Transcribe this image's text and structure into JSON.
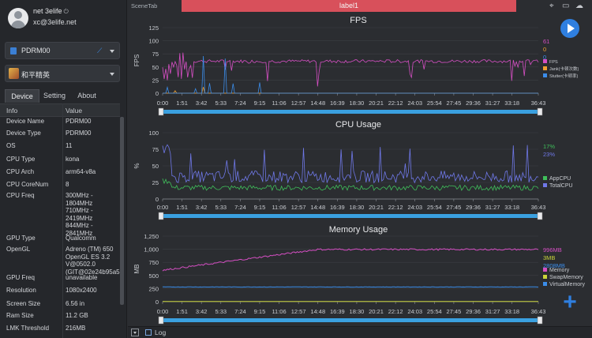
{
  "user": {
    "name": "net 3elife",
    "email": "xc@3elife.net",
    "power_glyph": "⏻"
  },
  "device_select": {
    "value": "PDRM00"
  },
  "app_select": {
    "value": "和平精英"
  },
  "tabs": [
    "Device",
    "Setting",
    "About"
  ],
  "active_tab": "Device",
  "info_table": {
    "headers": [
      "Info",
      "Value"
    ],
    "rows": [
      {
        "key": "Device Name",
        "value": "PDRM00"
      },
      {
        "key": "Device Type",
        "value": "PDRM00"
      },
      {
        "key": "OS",
        "value": "11"
      },
      {
        "key": "CPU Type",
        "value": "kona"
      },
      {
        "key": "CPU Arch",
        "value": "arm64-v8a"
      },
      {
        "key": "CPU CoreNum",
        "value": "8"
      },
      {
        "key": "CPU Freq",
        "value": "300MHz -\n1804MHz\n710MHz -\n2419MHz\n844MHz -\n2841MHz"
      },
      {
        "key": "GPU Type",
        "value": "Qualcomm"
      },
      {
        "key": "OpenGL",
        "value": "Adreno (TM) 650\nOpenGL ES 3.2\nV@0502.0\n(GIT@02e24b95a5"
      },
      {
        "key": "GPU Freq",
        "value": "unavailable"
      },
      {
        "key": "Resolution",
        "value": "1080x2400"
      },
      {
        "key": "Screen Size",
        "value": "6.56 in"
      },
      {
        "key": "Ram Size",
        "value": "11.2 GB"
      },
      {
        "key": "LMK Threshold",
        "value": "216MB"
      }
    ]
  },
  "scene_tab": "SceneTab",
  "label_tab": "label1",
  "top_icons": [
    "location-icon",
    "folder-icon",
    "cloud-icon"
  ],
  "log_label": "Log",
  "colors": {
    "accent": "#2f7fe0",
    "label_tab": "#d8505b",
    "fps": "#d64fc4",
    "jank": "#f0a030",
    "stutter": "#3b8dea",
    "appcpu": "#3fbf5a",
    "totalcpu": "#6f78e8",
    "memory": "#d64fc4",
    "swap": "#c9d43a",
    "virtual": "#3b8dea",
    "slider": "#3aa0e0"
  },
  "chart_data": [
    {
      "type": "line",
      "title": "FPS",
      "ylabel": "FPS",
      "ylim": [
        0,
        125
      ],
      "yticks": [
        "0",
        "25",
        "50",
        "75",
        "100",
        "125"
      ],
      "xticks": [
        "0:00",
        "1:51",
        "3:42",
        "5:33",
        "7:24",
        "9:15",
        "11:06",
        "12:57",
        "14:48",
        "16:39",
        "18:30",
        "20:21",
        "22:12",
        "24:03",
        "25:54",
        "27:45",
        "29:36",
        "31:27",
        "33:18",
        "36:43"
      ],
      "slider": {
        "start": "0:00",
        "end": "36:43"
      },
      "current_values": [
        "61",
        "0",
        "0"
      ],
      "series": [
        {
          "name": "FPS",
          "typical": 61
        },
        {
          "name": "Jank(卡顿次数)",
          "typical": 0
        },
        {
          "name": "Stutter(卡顿率)",
          "typical": 0
        }
      ]
    },
    {
      "type": "line",
      "title": "CPU Usage",
      "ylabel": "%",
      "ylim": [
        0,
        100
      ],
      "yticks": [
        "0",
        "25",
        "50",
        "75",
        "100"
      ],
      "xticks": [
        "0:00",
        "1:51",
        "3:42",
        "5:33",
        "7:24",
        "9:15",
        "11:06",
        "12:57",
        "14:48",
        "16:39",
        "18:30",
        "20:21",
        "22:12",
        "24:03",
        "25:54",
        "27:45",
        "29:36",
        "31:27",
        "33:18",
        "36:43"
      ],
      "slider": {
        "start": "0:00",
        "end": "36:43"
      },
      "current_values": [
        "17%",
        "23%"
      ],
      "series": [
        {
          "name": "AppCPU",
          "typical": 17
        },
        {
          "name": "TotalCPU",
          "typical": 30
        }
      ]
    },
    {
      "type": "line",
      "title": "Memory Usage",
      "ylabel": "MB",
      "ylim": [
        0,
        1250
      ],
      "yticks": [
        "0",
        "250",
        "500",
        "750",
        "1,000",
        "1,250"
      ],
      "xticks": [
        "0:00",
        "1:51",
        "3:42",
        "5:33",
        "7:24",
        "9:15",
        "11:06",
        "12:57",
        "14:48",
        "16:39",
        "18:30",
        "20:21",
        "22:12",
        "24:03",
        "25:54",
        "27:45",
        "29:36",
        "31:27",
        "33:18",
        "36:43"
      ],
      "slider": {
        "start": "0:00",
        "end": "36:43"
      },
      "current_values": [
        "996MB",
        "3MB",
        "2808MB"
      ],
      "series": [
        {
          "name": "Memory",
          "typical": 996
        },
        {
          "name": "SwapMemory",
          "typical": 3
        },
        {
          "name": "VirtualMemory",
          "typical": 280
        }
      ]
    }
  ]
}
